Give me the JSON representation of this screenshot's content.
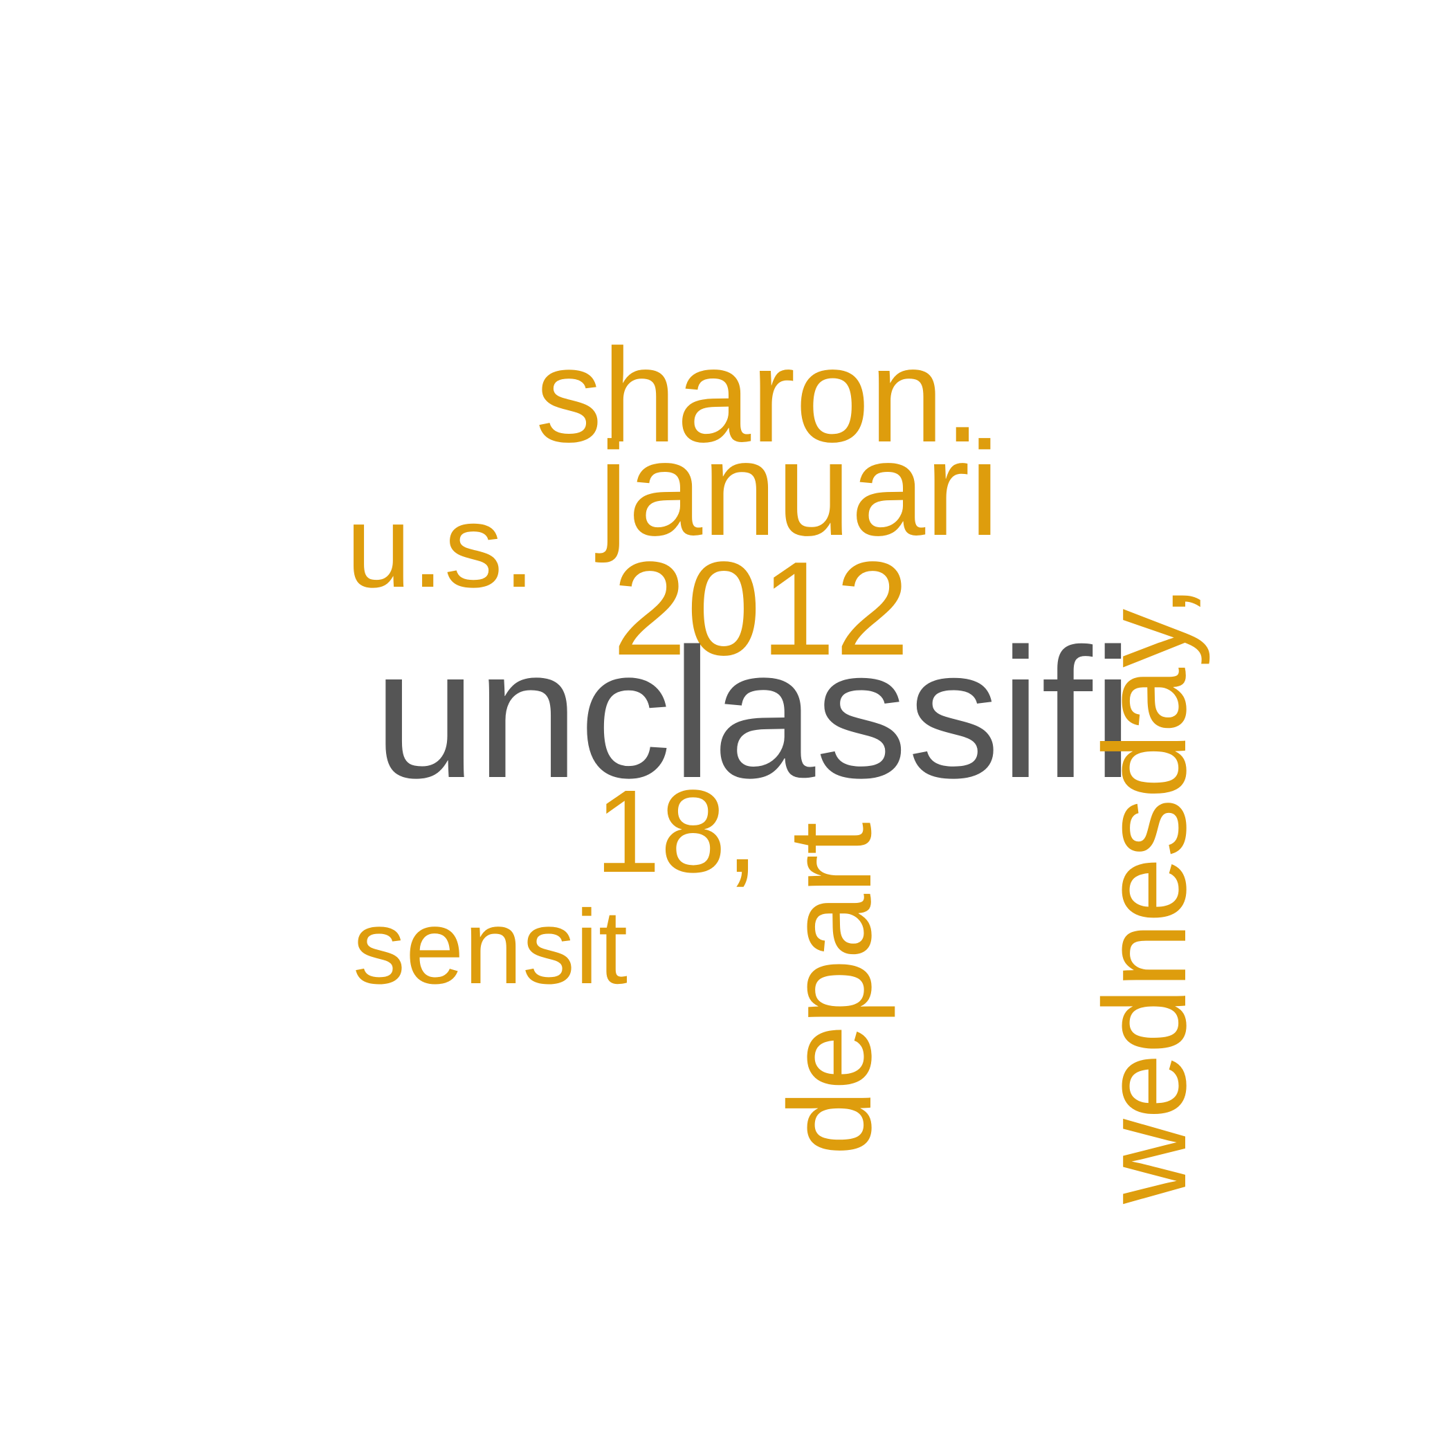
{
  "words": {
    "sharon": {
      "text": "sharon.",
      "color": "#DE9D0D",
      "orientation": "horizontal"
    },
    "januari": {
      "text": "januari",
      "color": "#DE9D0D",
      "orientation": "horizontal"
    },
    "us": {
      "text": "u.s.",
      "color": "#DE9D0D",
      "orientation": "horizontal"
    },
    "year": {
      "text": "2012",
      "color": "#DE9D0D",
      "orientation": "horizontal"
    },
    "unclassifi": {
      "text": "unclassifi",
      "color": "#555555",
      "orientation": "horizontal"
    },
    "day": {
      "text": "18,",
      "color": "#DE9D0D",
      "orientation": "horizontal"
    },
    "sensit": {
      "text": "sensit",
      "color": "#DE9D0D",
      "orientation": "horizontal"
    },
    "depart": {
      "text": "depart",
      "color": "#DE9D0D",
      "orientation": "vertical"
    },
    "wednesday": {
      "text": "wednesday,",
      "color": "#DE9D0D",
      "orientation": "vertical"
    }
  },
  "colors": {
    "accent": "#DE9D0D",
    "dominant": "#555555",
    "background": "#FFFFFF"
  }
}
